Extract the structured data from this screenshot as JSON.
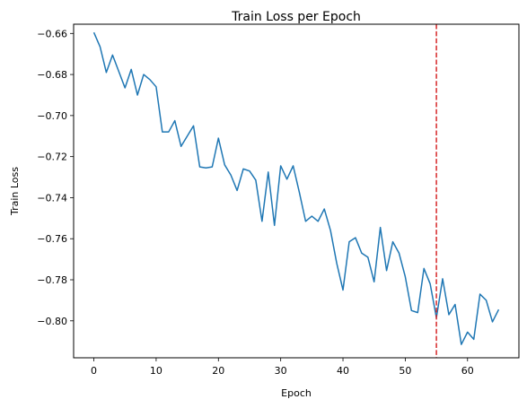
{
  "chart_data": {
    "type": "line",
    "title": "Train Loss per Epoch",
    "xlabel": "Epoch",
    "ylabel": "Train Loss",
    "xlim": [
      -3.25,
      68.25
    ],
    "ylim": [
      -0.818,
      -0.6555
    ],
    "xticks": [
      0,
      10,
      20,
      30,
      40,
      50,
      60
    ],
    "xtick_labels": [
      "0",
      "10",
      "20",
      "30",
      "40",
      "50",
      "60"
    ],
    "yticks": [
      -0.66,
      -0.68,
      -0.7,
      -0.72,
      -0.74,
      -0.76,
      -0.78,
      -0.8
    ],
    "ytick_labels": [
      "−0.66",
      "−0.68",
      "−0.70",
      "−0.72",
      "−0.74",
      "−0.76",
      "−0.78",
      "−0.80"
    ],
    "grid": false,
    "series": [
      {
        "color": "#1f77b4",
        "x": [
          0,
          1,
          2,
          3,
          4,
          5,
          6,
          7,
          8,
          9,
          10,
          11,
          12,
          13,
          14,
          15,
          16,
          17,
          18,
          19,
          20,
          21,
          22,
          23,
          24,
          25,
          26,
          27,
          28,
          29,
          30,
          31,
          32,
          33,
          34,
          35,
          36,
          37,
          38,
          39,
          40,
          41,
          42,
          43,
          44,
          45,
          46,
          47,
          48,
          49,
          50,
          51,
          52,
          53,
          54,
          55,
          56,
          57,
          58,
          59,
          60,
          61,
          62,
          63,
          64,
          65
        ],
        "y": [
          -0.6595,
          -0.6665,
          -0.679,
          -0.6705,
          -0.6785,
          -0.6865,
          -0.6775,
          -0.69,
          -0.68,
          -0.6825,
          -0.686,
          -0.708,
          -0.708,
          -0.7025,
          -0.715,
          -0.71,
          -0.705,
          -0.725,
          -0.7255,
          -0.725,
          -0.711,
          -0.724,
          -0.729,
          -0.7365,
          -0.726,
          -0.727,
          -0.7315,
          -0.7515,
          -0.7275,
          -0.7535,
          -0.7245,
          -0.731,
          -0.7245,
          -0.7375,
          -0.7515,
          -0.749,
          -0.7515,
          -0.7455,
          -0.756,
          -0.772,
          -0.785,
          -0.7615,
          -0.7595,
          -0.767,
          -0.769,
          -0.781,
          -0.7545,
          -0.7755,
          -0.7615,
          -0.767,
          -0.7785,
          -0.795,
          -0.796,
          -0.7745,
          -0.782,
          -0.7985,
          -0.7795,
          -0.797,
          -0.792,
          -0.8115,
          -0.8055,
          -0.809,
          -0.787,
          -0.79,
          -0.8005,
          -0.7945
        ]
      }
    ],
    "vlines": [
      {
        "x": 55,
        "color": "#d62728",
        "style": "dashed"
      }
    ]
  }
}
